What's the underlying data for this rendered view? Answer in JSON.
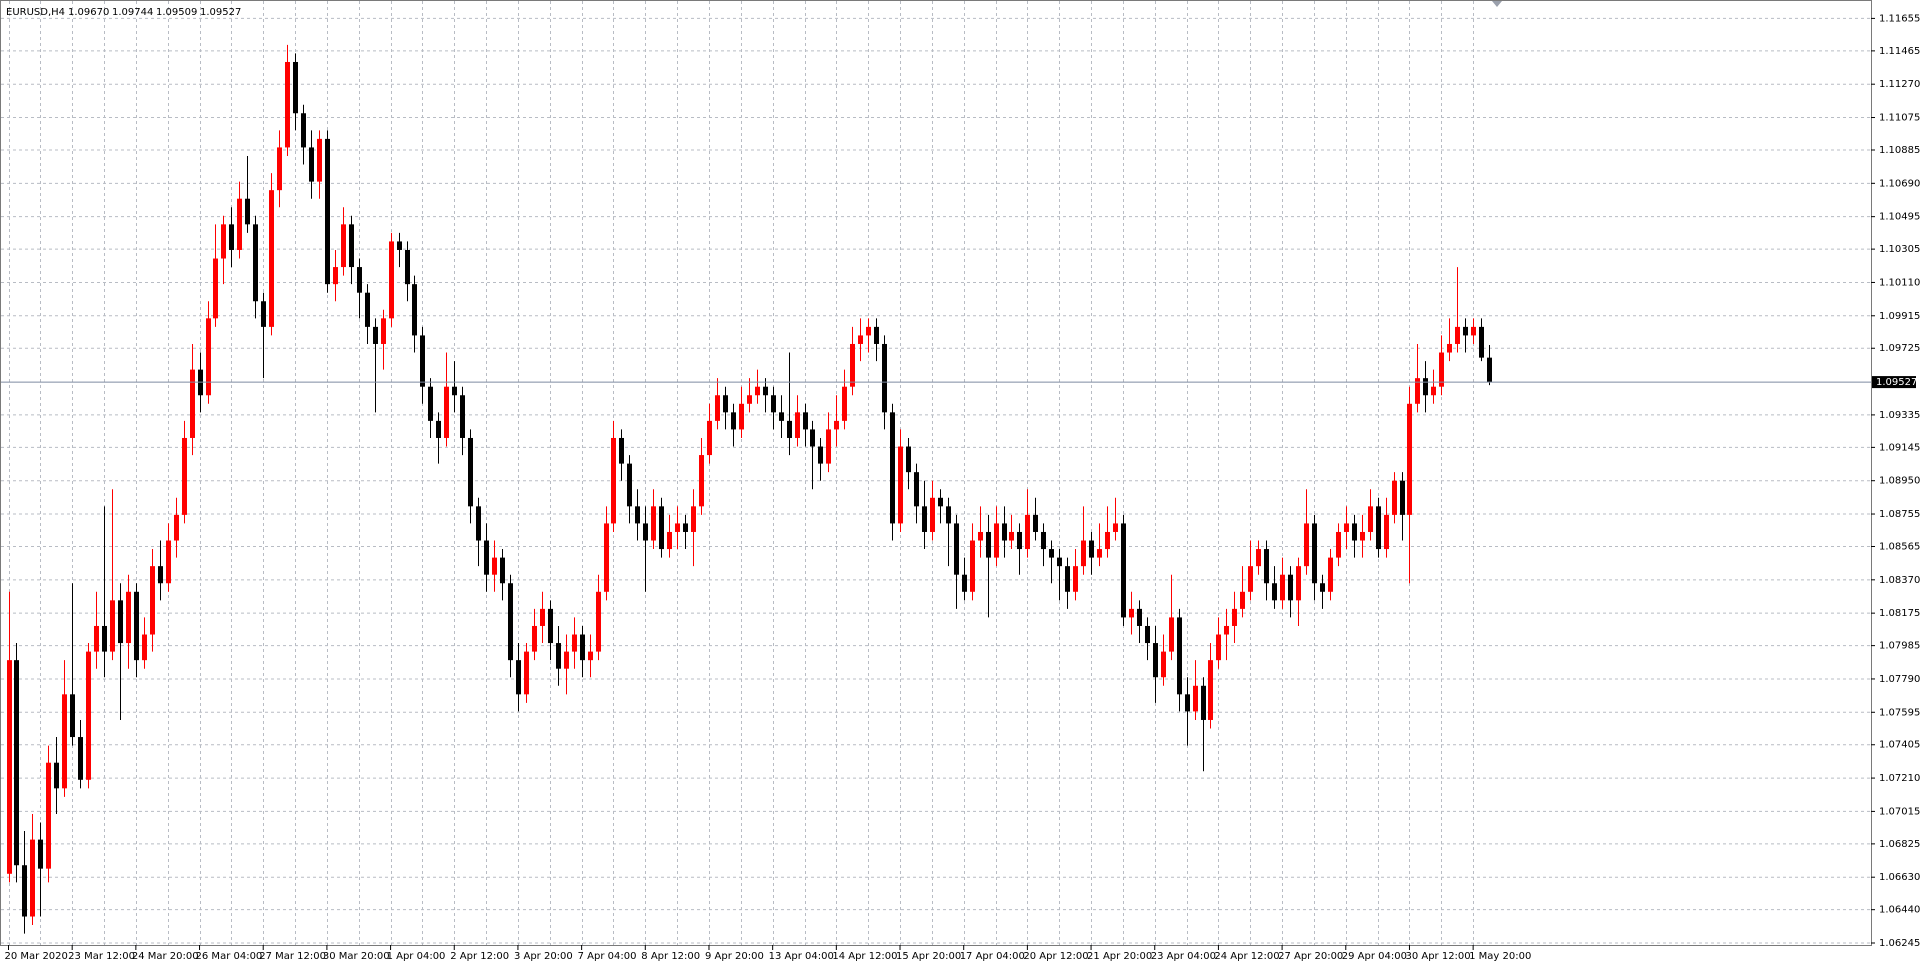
{
  "chart_data": {
    "type": "candlestick",
    "title": "EURUSD,H4",
    "ohlc_readout": [
      "1.09670",
      "1.09744",
      "1.09509",
      "1.09527"
    ],
    "up_color": "#ff0000",
    "down_color": "#000000",
    "grid": true,
    "ylim": [
      1.06245,
      1.11655
    ],
    "yticks": [
      1.11655,
      1.11465,
      {
        "value": 1.1127,
        "label": "1.11270"
      },
      1.11075,
      1.10885,
      {
        "value": 1.1069,
        "label": "1.10690"
      },
      1.10495,
      1.10305,
      {
        "value": 1.1011,
        "label": "1.10110"
      },
      1.09915,
      1.09725,
      1.09335,
      1.09145,
      {
        "value": 1.0895,
        "label": "1.08950"
      },
      1.08755,
      1.08565,
      {
        "value": 1.0837,
        "label": "1.08370"
      },
      1.08175,
      1.07985,
      {
        "value": 1.0779,
        "label": "1.07790"
      },
      1.07595,
      1.07405,
      {
        "value": 1.0721,
        "label": "1.07210"
      },
      1.07015,
      1.06825,
      {
        "value": 1.0663,
        "label": "1.06630"
      },
      {
        "value": 1.0644,
        "label": "1.06440"
      },
      1.06245
    ],
    "current_price": {
      "value": 1.09527,
      "label": "1.09527"
    },
    "time_labels": [
      "20 Mar 2020",
      "23 Mar 12:00",
      "24 Mar 20:00",
      "26 Mar 04:00",
      "27 Mar 12:00",
      "30 Mar 20:00",
      "1 Apr 04:00",
      "2 Apr 12:00",
      "3 Apr 20:00",
      "7 Apr 04:00",
      "8 Apr 12:00",
      "9 Apr 20:00",
      "13 Apr 04:00",
      "14 Apr 12:00",
      "15 Apr 20:00",
      "17 Apr 04:00",
      "20 Apr 12:00",
      "21 Apr 20:00",
      "23 Apr 04:00",
      "24 Apr 12:00",
      "27 Apr 20:00",
      "29 Apr 04:00",
      "30 Apr 12:00",
      "1 May 20:00"
    ],
    "candles": [
      [
        1.0665,
        1.083,
        1.066,
        1.079
      ],
      [
        1.079,
        1.08,
        1.066,
        1.067
      ],
      [
        1.067,
        1.069,
        1.063,
        1.064
      ],
      [
        1.064,
        1.07,
        1.0635,
        1.0685
      ],
      [
        1.0685,
        1.0695,
        1.064,
        1.0668
      ],
      [
        1.0668,
        1.074,
        1.066,
        1.073
      ],
      [
        1.073,
        1.0745,
        1.07,
        1.0715
      ],
      [
        1.0715,
        1.079,
        1.071,
        1.077
      ],
      [
        1.077,
        1.0835,
        1.074,
        1.0745
      ],
      [
        1.0745,
        1.0755,
        1.0715,
        1.072
      ],
      [
        1.072,
        1.08,
        1.0715,
        1.0795
      ],
      [
        1.0795,
        1.083,
        1.0785,
        1.081
      ],
      [
        1.081,
        1.088,
        1.078,
        1.0795
      ],
      [
        1.0795,
        1.089,
        1.079,
        1.0825
      ],
      [
        1.0825,
        1.0835,
        1.0755,
        1.08
      ],
      [
        1.08,
        1.084,
        1.0785,
        1.083
      ],
      [
        1.083,
        1.0835,
        1.078,
        1.079
      ],
      [
        1.079,
        1.0815,
        1.0785,
        1.0805
      ],
      [
        1.0805,
        1.0855,
        1.0795,
        1.0845
      ],
      [
        1.0845,
        1.086,
        1.0825,
        1.0835
      ],
      [
        1.0835,
        1.087,
        1.083,
        1.086
      ],
      [
        1.086,
        1.0885,
        1.085,
        1.0875
      ],
      [
        1.0875,
        1.093,
        1.087,
        1.092
      ],
      [
        1.092,
        1.0975,
        1.091,
        1.096
      ],
      [
        1.096,
        1.097,
        1.0935,
        1.0945
      ],
      [
        1.0945,
        1.1,
        1.094,
        1.099
      ],
      [
        1.099,
        1.1045,
        1.0985,
        1.1025
      ],
      [
        1.1025,
        1.105,
        1.101,
        1.1045
      ],
      [
        1.1045,
        1.1055,
        1.102,
        1.103
      ],
      [
        1.103,
        1.107,
        1.1025,
        1.106
      ],
      [
        1.106,
        1.1085,
        1.104,
        1.1045
      ],
      [
        1.1045,
        1.105,
        1.099,
        1.1
      ],
      [
        1.1,
        1.1005,
        1.0955,
        1.0985
      ],
      [
        1.0985,
        1.1075,
        1.098,
        1.1065
      ],
      [
        1.1065,
        1.11,
        1.1055,
        1.109
      ],
      [
        1.109,
        1.115,
        1.1085,
        1.114
      ],
      [
        1.114,
        1.1145,
        1.11,
        1.111
      ],
      [
        1.111,
        1.1115,
        1.108,
        1.109
      ],
      [
        1.109,
        1.11,
        1.106,
        1.107
      ],
      [
        1.107,
        1.11,
        1.106,
        1.1095
      ],
      [
        1.1095,
        1.11,
        1.1005,
        1.101
      ],
      [
        1.101,
        1.103,
        1.1,
        1.102
      ],
      [
        1.102,
        1.1055,
        1.1015,
        1.1045
      ],
      [
        1.1045,
        1.105,
        1.101,
        1.102
      ],
      [
        1.102,
        1.1025,
        1.099,
        1.1005
      ],
      [
        1.1005,
        1.101,
        1.0975,
        1.0985
      ],
      [
        1.0985,
        1.099,
        1.0935,
        1.0975
      ],
      [
        1.0975,
        1.0995,
        1.096,
        1.099
      ],
      [
        1.099,
        1.104,
        1.0985,
        1.1035
      ],
      [
        1.1035,
        1.104,
        1.102,
        1.103
      ],
      [
        1.103,
        1.1035,
        1.1,
        1.101
      ],
      [
        1.101,
        1.1015,
        1.097,
        1.098
      ],
      [
        1.098,
        1.0985,
        1.094,
        1.095
      ],
      [
        1.095,
        1.0955,
        1.092,
        1.093
      ],
      [
        1.093,
        1.0935,
        1.0905,
        1.092
      ],
      [
        1.092,
        1.097,
        1.0915,
        1.095
      ],
      [
        1.095,
        1.0965,
        1.0935,
        1.0945
      ],
      [
        1.0945,
        1.095,
        1.091,
        1.092
      ],
      [
        1.092,
        1.0925,
        1.087,
        1.088
      ],
      [
        1.088,
        1.0885,
        1.0845,
        1.086
      ],
      [
        1.086,
        1.087,
        1.083,
        1.084
      ],
      [
        1.084,
        1.086,
        1.083,
        1.085
      ],
      [
        1.085,
        1.0855,
        1.0825,
        1.0835
      ],
      [
        1.0835,
        1.084,
        1.078,
        1.079
      ],
      [
        1.079,
        1.08,
        1.076,
        1.077
      ],
      [
        1.077,
        1.08,
        1.0765,
        1.0795
      ],
      [
        1.0795,
        1.082,
        1.079,
        1.081
      ],
      [
        1.081,
        1.083,
        1.08,
        1.082
      ],
      [
        1.082,
        1.0825,
        1.079,
        1.08
      ],
      [
        1.08,
        1.081,
        1.0775,
        1.0785
      ],
      [
        1.0785,
        1.0805,
        1.077,
        1.0795
      ],
      [
        1.0795,
        1.0815,
        1.0785,
        1.0805
      ],
      [
        1.0805,
        1.081,
        1.078,
        1.079
      ],
      [
        1.079,
        1.0805,
        1.078,
        1.0795
      ],
      [
        1.0795,
        1.084,
        1.079,
        1.083
      ],
      [
        1.083,
        1.088,
        1.0825,
        1.087
      ],
      [
        1.087,
        1.093,
        1.0865,
        1.092
      ],
      [
        1.092,
        1.0925,
        1.0895,
        1.0905
      ],
      [
        1.0905,
        1.091,
        1.087,
        1.088
      ],
      [
        1.088,
        1.089,
        1.086,
        1.087
      ],
      [
        1.087,
        1.088,
        1.083,
        1.086
      ],
      [
        1.086,
        1.089,
        1.0855,
        1.088
      ],
      [
        1.088,
        1.0885,
        1.085,
        1.0855
      ],
      [
        1.0855,
        1.0875,
        1.085,
        1.0865
      ],
      [
        1.0865,
        1.088,
        1.0855,
        1.087
      ],
      [
        1.087,
        1.0875,
        1.0855,
        1.0865
      ],
      [
        1.0865,
        1.089,
        1.0845,
        1.088
      ],
      [
        1.088,
        1.092,
        1.0875,
        1.091
      ],
      [
        1.091,
        1.094,
        1.0905,
        1.093
      ],
      [
        1.093,
        1.0955,
        1.0925,
        1.0945
      ],
      [
        1.0945,
        1.095,
        1.0925,
        1.0935
      ],
      [
        1.0935,
        1.094,
        1.0915,
        1.0925
      ],
      [
        1.0925,
        1.095,
        1.092,
        1.094
      ],
      [
        1.094,
        1.0955,
        1.0935,
        1.0945
      ],
      [
        1.0945,
        1.096,
        1.094,
        1.095
      ],
      [
        1.095,
        1.0955,
        1.0935,
        1.0945
      ],
      [
        1.0945,
        1.095,
        1.0925,
        1.0935
      ],
      [
        1.0935,
        1.0945,
        1.092,
        1.093
      ],
      [
        1.093,
        1.097,
        1.091,
        1.092
      ],
      [
        1.092,
        1.0945,
        1.0915,
        1.0935
      ],
      [
        1.0935,
        1.094,
        1.0915,
        1.0925
      ],
      [
        1.0925,
        1.093,
        1.089,
        1.0915
      ],
      [
        1.0915,
        1.092,
        1.0895,
        1.0905
      ],
      [
        1.0905,
        1.0935,
        1.09,
        1.0925
      ],
      [
        1.0925,
        1.0945,
        1.0915,
        1.093
      ],
      [
        1.093,
        1.096,
        1.0925,
        1.095
      ],
      [
        1.095,
        1.0985,
        1.0945,
        1.0975
      ],
      [
        1.0975,
        1.099,
        1.0965,
        1.098
      ],
      [
        1.098,
        1.099,
        1.097,
        1.0985
      ],
      [
        1.0985,
        1.099,
        1.0965,
        1.0975
      ],
      [
        1.0975,
        1.098,
        1.0925,
        1.0935
      ],
      [
        1.0935,
        1.094,
        1.086,
        1.087
      ],
      [
        1.087,
        1.0925,
        1.0865,
        1.0915
      ],
      [
        1.0915,
        1.092,
        1.089,
        1.09
      ],
      [
        1.09,
        1.0905,
        1.087,
        1.088
      ],
      [
        1.088,
        1.0895,
        1.0855,
        1.0865
      ],
      [
        1.0865,
        1.0895,
        1.086,
        1.0885
      ],
      [
        1.0885,
        1.089,
        1.087,
        1.088
      ],
      [
        1.088,
        1.0885,
        1.0845,
        1.087
      ],
      [
        1.087,
        1.0875,
        1.082,
        1.084
      ],
      [
        1.084,
        1.085,
        1.0825,
        1.083
      ],
      [
        1.083,
        1.087,
        1.0825,
        1.086
      ],
      [
        1.086,
        1.088,
        1.085,
        1.0865
      ],
      [
        1.0865,
        1.0875,
        1.0815,
        1.085
      ],
      [
        1.085,
        1.088,
        1.0845,
        1.087
      ],
      [
        1.087,
        1.088,
        1.085,
        1.086
      ],
      [
        1.086,
        1.0875,
        1.0855,
        1.0865
      ],
      [
        1.0865,
        1.087,
        1.084,
        1.0855
      ],
      [
        1.0855,
        1.089,
        1.085,
        1.0875
      ],
      [
        1.0875,
        1.0885,
        1.086,
        1.0865
      ],
      [
        1.0865,
        1.087,
        1.0845,
        1.0855
      ],
      [
        1.0855,
        1.086,
        1.0835,
        1.085
      ],
      [
        1.085,
        1.0855,
        1.0825,
        1.0845
      ],
      [
        1.0845,
        1.085,
        1.082,
        1.083
      ],
      [
        1.083,
        1.0855,
        1.0825,
        1.0845
      ],
      [
        1.0845,
        1.088,
        1.084,
        1.086
      ],
      [
        1.086,
        1.0865,
        1.084,
        1.085
      ],
      [
        1.085,
        1.087,
        1.0845,
        1.0855
      ],
      [
        1.0855,
        1.088,
        1.085,
        1.0865
      ],
      [
        1.0865,
        1.0885,
        1.086,
        1.087
      ],
      [
        1.087,
        1.0875,
        1.081,
        1.0815
      ],
      [
        1.0815,
        1.083,
        1.0805,
        1.082
      ],
      [
        1.082,
        1.0825,
        1.08,
        1.081
      ],
      [
        1.081,
        1.0815,
        1.079,
        1.08
      ],
      [
        1.08,
        1.081,
        1.0765,
        1.078
      ],
      [
        1.078,
        1.0805,
        1.0775,
        1.0795
      ],
      [
        1.0795,
        1.084,
        1.079,
        1.0815
      ],
      [
        1.0815,
        1.082,
        1.076,
        1.077
      ],
      [
        1.077,
        1.078,
        1.074,
        1.076
      ],
      [
        1.076,
        1.079,
        1.0755,
        1.0775
      ],
      [
        1.0775,
        1.078,
        1.0725,
        1.0755
      ],
      [
        1.0755,
        1.08,
        1.075,
        1.079
      ],
      [
        1.079,
        1.0815,
        1.0785,
        1.0805
      ],
      [
        1.0805,
        1.082,
        1.079,
        1.081
      ],
      [
        1.081,
        1.083,
        1.08,
        1.082
      ],
      [
        1.082,
        1.0845,
        1.0815,
        1.083
      ],
      [
        1.083,
        1.086,
        1.0825,
        1.0845
      ],
      [
        1.0845,
        1.086,
        1.084,
        1.0855
      ],
      [
        1.0855,
        1.086,
        1.0825,
        1.0835
      ],
      [
        1.0835,
        1.0845,
        1.082,
        1.0825
      ],
      [
        1.0825,
        1.085,
        1.082,
        1.084
      ],
      [
        1.084,
        1.0845,
        1.0815,
        1.0825
      ],
      [
        1.0825,
        1.085,
        1.081,
        1.0845
      ],
      [
        1.0845,
        1.089,
        1.084,
        1.087
      ],
      [
        1.087,
        1.0875,
        1.0825,
        1.0835
      ],
      [
        1.0835,
        1.084,
        1.082,
        1.083
      ],
      [
        1.083,
        1.0855,
        1.0825,
        1.085
      ],
      [
        1.085,
        1.087,
        1.0845,
        1.0865
      ],
      [
        1.0865,
        1.088,
        1.0855,
        1.087
      ],
      [
        1.087,
        1.0875,
        1.085,
        1.086
      ],
      [
        1.086,
        1.0875,
        1.085,
        1.0865
      ],
      [
        1.0865,
        1.089,
        1.086,
        1.088
      ],
      [
        1.088,
        1.0885,
        1.085,
        1.0855
      ],
      [
        1.0855,
        1.0885,
        1.085,
        1.0875
      ],
      [
        1.0875,
        1.09,
        1.087,
        1.0895
      ],
      [
        1.0895,
        1.09,
        1.086,
        1.0875
      ],
      [
        1.0875,
        1.095,
        1.0835,
        1.094
      ],
      [
        1.094,
        1.0975,
        1.0935,
        1.0955
      ],
      [
        1.0955,
        1.0965,
        1.0935,
        1.0945
      ],
      [
        1.0945,
        1.096,
        1.094,
        1.095
      ],
      [
        1.095,
        1.098,
        1.0945,
        1.097
      ],
      [
        1.097,
        1.099,
        1.0965,
        1.0975
      ],
      [
        1.0975,
        1.102,
        1.097,
        1.0985
      ],
      [
        1.0985,
        1.099,
        1.097,
        1.098
      ],
      [
        1.098,
        1.099,
        1.0975,
        1.0985
      ],
      [
        1.0985,
        1.099,
        1.0965,
        1.0967
      ],
      [
        1.0967,
        1.09744,
        1.09509,
        1.09527
      ]
    ]
  }
}
